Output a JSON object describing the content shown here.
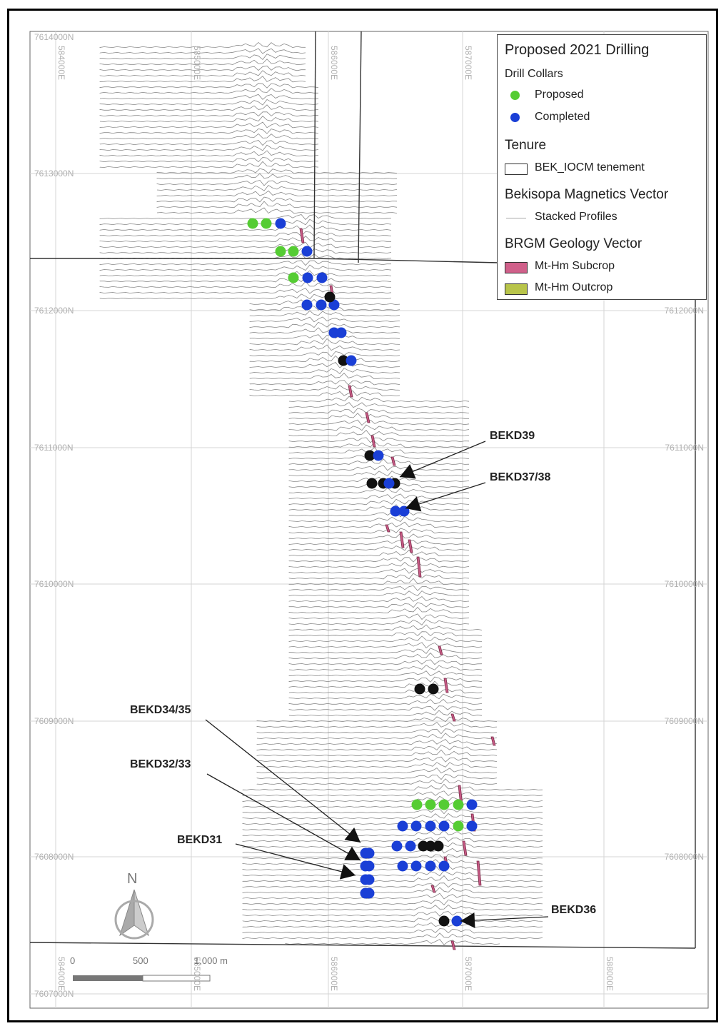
{
  "legend": {
    "title": "Proposed 2021 Drilling",
    "collars_header": "Drill Collars",
    "proposed": {
      "label": "Proposed",
      "color": "#55cc33"
    },
    "completed": {
      "label": "Completed",
      "color": "#1a3fd6"
    },
    "tenure_header": "Tenure",
    "tenement": "BEK_IOCM tenement",
    "magnetics_header": "Bekisopa Magnetics Vector",
    "profiles": "Stacked Profiles",
    "geology_header": "BRGM Geology Vector",
    "subcrop": {
      "label": "Mt-Hm Subcrop",
      "color": "#d0608a"
    },
    "outcrop": {
      "label": "Mt-Hm Outcrop",
      "color": "#b8c44a"
    }
  },
  "grid": {
    "northings": [
      "7613000N",
      "7612000N",
      "7611000N",
      "7610000N",
      "7609000N",
      "7608000N",
      "7607000N"
    ],
    "eastings": [
      "584000E",
      "585000E",
      "586000E",
      "587000E",
      "588000E"
    ],
    "top_label": "7614000N"
  },
  "scale_bar": {
    "ticks": [
      "0",
      "500",
      "1,000 m"
    ]
  },
  "north_arrow": "N",
  "callouts": {
    "bekd39": "BEKD39",
    "bekd37_38": "BEKD37/38",
    "bekd34_35": "BEKD34/35",
    "bekd32_33": "BEKD32/33",
    "bekd31": "BEKD31",
    "bekd36": "BEKD36"
  }
}
